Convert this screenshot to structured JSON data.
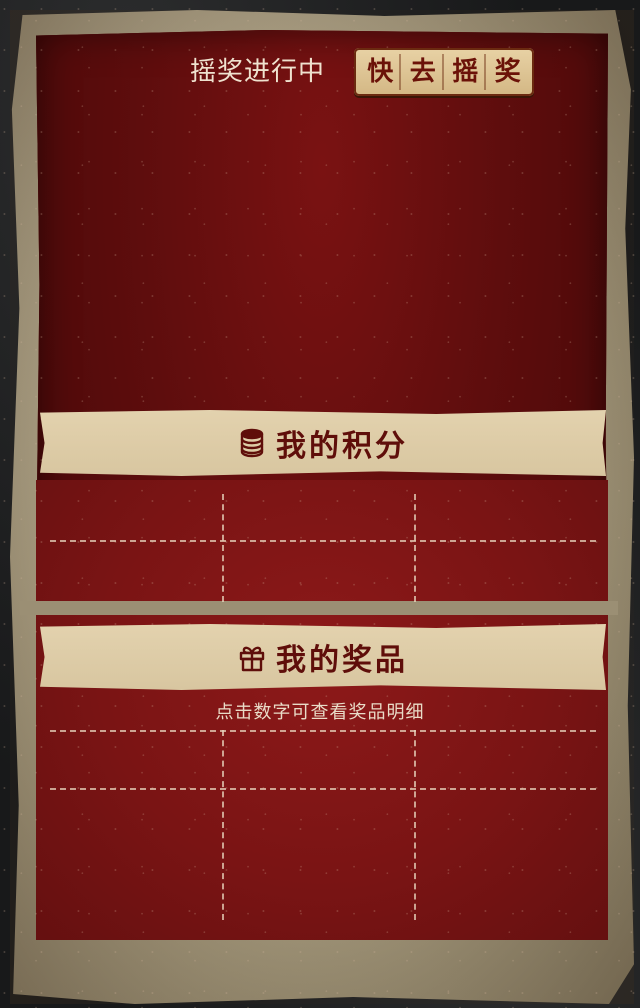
{
  "lottery": {
    "status_text": "摇奖进行中",
    "button_chars": [
      "快",
      "去",
      "摇",
      "奖"
    ]
  },
  "points_section": {
    "title": "我的积分",
    "icon": "coins-stack-icon"
  },
  "prizes_section": {
    "title": "我的奖品",
    "icon": "gift-icon",
    "hint": "点击数字可查看奖品明细"
  },
  "colors": {
    "panel_red": "#5e0d0d",
    "paper": "#a99c80",
    "banner_text": "#5f0e0a",
    "light_text": "#efe2cf"
  }
}
